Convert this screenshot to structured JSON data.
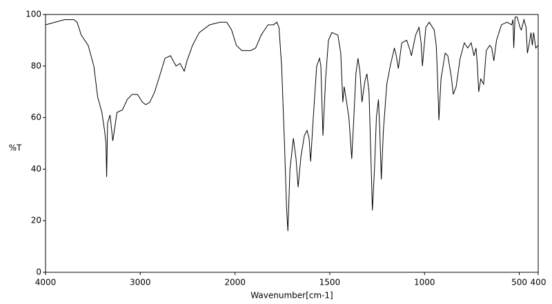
{
  "chart_data": {
    "type": "line",
    "x_label": "Wavenumber[cm-1]",
    "y_label": "%T",
    "xlim": [
      4000,
      400
    ],
    "x_scale_change_at": 2000,
    "ylim": [
      0,
      100
    ],
    "xticks": [
      4000,
      3000,
      2000,
      1500,
      1000,
      500,
      400
    ],
    "yticks": [
      0,
      20,
      40,
      60,
      80,
      100
    ],
    "color": "#000000",
    "x": [
      4000,
      3900,
      3800,
      3700,
      3667,
      3623,
      3550,
      3490,
      3450,
      3405,
      3377,
      3362,
      3355,
      3345,
      3319,
      3290,
      3246,
      3188,
      3138,
      3087,
      3029,
      2978,
      2942,
      2899,
      2848,
      2797,
      2739,
      2681,
      2623,
      2580,
      2536,
      2507,
      2449,
      2377,
      2268,
      2159,
      2087,
      2036,
      1993,
      1964,
      1917,
      1891,
      1862,
      1826,
      1797,
      1779,
      1768,
      1754,
      1739,
      1728,
      1721,
      1710,
      1692,
      1678,
      1667,
      1652,
      1634,
      1620,
      1609,
      1601,
      1587,
      1569,
      1554,
      1547,
      1536,
      1522,
      1507,
      1489,
      1457,
      1442,
      1431,
      1424,
      1409,
      1399,
      1384,
      1373,
      1362,
      1351,
      1341,
      1330,
      1315,
      1304,
      1293,
      1283,
      1275,
      1264,
      1254,
      1243,
      1236,
      1228,
      1217,
      1199,
      1181,
      1159,
      1149,
      1138,
      1120,
      1094,
      1076,
      1069,
      1047,
      1029,
      1018,
      1011,
      993,
      975,
      949,
      938,
      931,
      924,
      913,
      891,
      877,
      859,
      848,
      833,
      812,
      790,
      772,
      754,
      739,
      728,
      721,
      714,
      703,
      688,
      674,
      656,
      645,
      634,
      620,
      594,
      565,
      540,
      533,
      529,
      522,
      511,
      496,
      489,
      475,
      464,
      457,
      449,
      438,
      431,
      424,
      413,
      400
    ],
    "values": [
      96,
      97,
      98,
      98,
      97,
      92,
      88,
      80,
      68,
      62,
      55,
      50,
      37,
      58,
      61,
      51,
      62,
      63,
      67,
      69,
      69,
      66,
      65,
      66,
      70,
      76,
      83,
      84,
      80,
      81,
      78,
      82,
      88,
      93,
      96,
      97,
      97,
      94,
      88,
      86,
      86,
      87,
      92,
      96,
      96,
      97,
      95,
      80,
      50,
      25,
      16,
      40,
      52,
      44,
      33,
      45,
      53,
      55,
      52,
      43,
      60,
      80,
      83,
      80,
      53,
      75,
      90,
      93,
      92,
      85,
      66,
      72,
      65,
      60,
      44,
      60,
      77,
      83,
      78,
      66,
      74,
      77,
      70,
      45,
      24,
      40,
      60,
      67,
      55,
      36,
      55,
      73,
      80,
      87,
      84,
      79,
      89,
      90,
      86,
      84,
      92,
      95,
      89,
      80,
      95,
      97,
      94,
      88,
      75,
      59,
      75,
      85,
      84,
      76,
      69,
      72,
      83,
      89,
      87,
      89,
      84,
      87,
      80,
      70,
      75,
      73,
      86,
      88,
      87,
      82,
      90,
      96,
      97,
      96,
      98,
      87,
      99,
      99,
      95,
      94,
      98,
      95,
      85,
      88,
      93,
      88,
      93,
      87,
      88
    ]
  }
}
